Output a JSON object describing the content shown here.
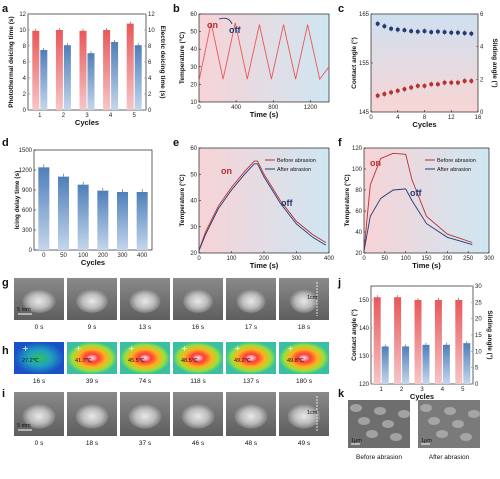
{
  "panels": {
    "a": {
      "label": "a"
    },
    "b": {
      "label": "b"
    },
    "c": {
      "label": "c"
    },
    "d": {
      "label": "d"
    },
    "e": {
      "label": "e"
    },
    "f": {
      "label": "f"
    },
    "g": {
      "label": "g"
    },
    "h": {
      "label": "h"
    },
    "i": {
      "label": "i"
    },
    "j": {
      "label": "j"
    },
    "k": {
      "label": "k"
    }
  },
  "colors": {
    "red": "#e8585a",
    "blue": "#4e7fb9",
    "navy": "#233a73",
    "darkred": "#b83030",
    "axisblue": "#5b9bd5",
    "pinkbg": "#f7d3d6",
    "bluebg": "#cfe6f2"
  },
  "chart_data": [
    {
      "panel": "a",
      "type": "bar",
      "categories": [
        "1",
        "2",
        "3",
        "4",
        "5"
      ],
      "series": [
        {
          "name": "Photothermal deicing time",
          "values": [
            9.9,
            10.0,
            9.9,
            10.0,
            10.8
          ]
        },
        {
          "name": "Electric deicing time",
          "values": [
            7.5,
            8.1,
            7.1,
            8.5,
            8.1
          ]
        }
      ],
      "xlabel": "Cycles",
      "ylabel": "Photothermal deicing time (s)",
      "y2label": "Electric deicing time (s)",
      "ylim": [
        0,
        12
      ],
      "y2lim": [
        0,
        12
      ],
      "yticks": [
        "0",
        "2",
        "4",
        "6",
        "8",
        "10",
        "12"
      ],
      "y2ticks": [
        "0",
        "2",
        "4",
        "6",
        "8",
        "10",
        "12"
      ]
    },
    {
      "panel": "b",
      "type": "line",
      "xlabel": "Time (s)",
      "ylabel": "Temperature (°C)",
      "xlim": [
        0,
        1400
      ],
      "ylim": [
        10,
        60
      ],
      "xticks": [
        "0",
        "400",
        "800",
        "1200"
      ],
      "yticks": [
        "10",
        "20",
        "30",
        "40",
        "50",
        "60"
      ],
      "annotations": [
        "on",
        "off"
      ],
      "x": [
        0,
        130,
        260,
        390,
        520,
        650,
        780,
        910,
        1040,
        1170,
        1300,
        1400
      ],
      "y": [
        22,
        55,
        23,
        55,
        23,
        54,
        23,
        54,
        23,
        54,
        23,
        30
      ]
    },
    {
      "panel": "c",
      "type": "scatter",
      "xlabel": "Cycles",
      "ylabel": "Contact angle (°)",
      "y2label": "Sliding angle (°)",
      "xlim": [
        0,
        16
      ],
      "ylim": [
        145,
        165
      ],
      "y2lim": [
        0,
        6
      ],
      "xticks": [
        "0",
        "4",
        "8",
        "12",
        "16"
      ],
      "yticks": [
        "145",
        "155",
        "165"
      ],
      "y2ticks": [
        "0",
        "2",
        "4",
        "6"
      ],
      "series": [
        {
          "name": "Contact angle",
          "x": [
            1,
            2,
            3,
            4,
            5,
            6,
            7,
            8,
            9,
            10,
            11,
            12,
            13,
            14,
            15
          ],
          "values": [
            163.0,
            162.5,
            162.0,
            161.8,
            161.7,
            161.5,
            161.4,
            161.5,
            161.3,
            161.4,
            161.3,
            161.2,
            161.2,
            161.1,
            161.0
          ]
        },
        {
          "name": "Sliding angle",
          "x": [
            1,
            2,
            3,
            4,
            5,
            6,
            7,
            8,
            9,
            10,
            11,
            12,
            13,
            14,
            15
          ],
          "values": [
            1.0,
            1.1,
            1.2,
            1.3,
            1.4,
            1.5,
            1.6,
            1.6,
            1.7,
            1.7,
            1.8,
            1.8,
            1.8,
            1.9,
            1.9
          ]
        }
      ]
    },
    {
      "panel": "d",
      "type": "bar",
      "categories": [
        "0",
        "50",
        "100",
        "200",
        "300",
        "400"
      ],
      "values": [
        1240,
        1100,
        980,
        890,
        870,
        870
      ],
      "xlabel": "Cycles",
      "ylabel": "Icing delay time (s)",
      "ylim": [
        0,
        1500
      ],
      "yticks": [
        "0",
        "300",
        "600",
        "900",
        "1200",
        "1500"
      ]
    },
    {
      "panel": "e",
      "type": "line",
      "xlabel": "Time (s)",
      "ylabel": "Temperature (°C)",
      "xlim": [
        0,
        400
      ],
      "ylim": [
        20,
        60
      ],
      "xticks": [
        "0",
        "100",
        "200",
        "300",
        "400"
      ],
      "yticks": [
        "20",
        "30",
        "40",
        "50",
        "60"
      ],
      "annotations": [
        "on",
        "off"
      ],
      "series": [
        {
          "name": "Before abrasion",
          "x": [
            0,
            20,
            60,
            100,
            140,
            170,
            180,
            200,
            250,
            300,
            350,
            390
          ],
          "values": [
            21,
            28,
            38,
            45,
            51,
            55,
            55,
            50,
            40,
            32,
            27,
            24
          ]
        },
        {
          "name": "After abrasion",
          "x": [
            0,
            20,
            60,
            100,
            140,
            170,
            180,
            200,
            250,
            300,
            350,
            390
          ],
          "values": [
            21,
            27,
            37,
            44,
            50,
            54,
            54,
            49,
            39,
            31,
            26,
            23
          ]
        }
      ]
    },
    {
      "panel": "f",
      "type": "line",
      "xlabel": "Time (s)",
      "ylabel": "Temperature (°C)",
      "xlim": [
        0,
        300
      ],
      "ylim": [
        20,
        120
      ],
      "xticks": [
        "0",
        "50",
        "100",
        "150",
        "200",
        "250",
        "300"
      ],
      "yticks": [
        "20",
        "40",
        "60",
        "80",
        "100",
        "120"
      ],
      "annotations": [
        "on",
        "off"
      ],
      "series": [
        {
          "name": "Before abrasion",
          "x": [
            0,
            15,
            40,
            70,
            100,
            115,
            150,
            200,
            260
          ],
          "values": [
            22,
            85,
            110,
            115,
            114,
            90,
            55,
            38,
            30
          ]
        },
        {
          "name": "After abrasion",
          "x": [
            0,
            15,
            40,
            70,
            100,
            115,
            150,
            200,
            260
          ],
          "values": [
            22,
            55,
            72,
            80,
            81,
            70,
            48,
            35,
            28
          ]
        }
      ]
    },
    {
      "panel": "j",
      "type": "bar",
      "categories": [
        "1",
        "2",
        "3",
        "4",
        "5"
      ],
      "series": [
        {
          "name": "Contact angle",
          "values": [
            151,
            151,
            150,
            150,
            150
          ]
        },
        {
          "name": "Sliding angle",
          "values": [
            11.5,
            11.5,
            12,
            12,
            12.5
          ]
        }
      ],
      "xlabel": "Cycles",
      "ylabel": "Contact angle (°)",
      "y2label": "Sliding angle (°)",
      "ylim": [
        120,
        155
      ],
      "y2lim": [
        0,
        30
      ],
      "yticks": [
        "120",
        "130",
        "140",
        "150"
      ],
      "y2ticks": [
        "0",
        "5",
        "10",
        "15",
        "20",
        "25",
        "30"
      ]
    }
  ],
  "g": {
    "times": [
      "0 s",
      "9 s",
      "13 s",
      "16 s",
      "17 s",
      "18 s"
    ],
    "scale": "5 mm",
    "scale2": "1cm"
  },
  "h": {
    "times": [
      "16 s",
      "39 s",
      "74 s",
      "118 s",
      "137 s",
      "180 s"
    ],
    "temps": [
      "27.2℃",
      "41.7℃",
      "45.5℃",
      "48.5℃",
      "49.2℃",
      "49.8℃"
    ]
  },
  "i": {
    "times": [
      "0 s",
      "18 s",
      "37 s",
      "46 s",
      "48 s",
      "49 s"
    ],
    "scale": "5 mm",
    "scale2": "1cm"
  },
  "k": {
    "captions": [
      "Before abrasion",
      "After abrasion"
    ],
    "scale": "1μm"
  }
}
